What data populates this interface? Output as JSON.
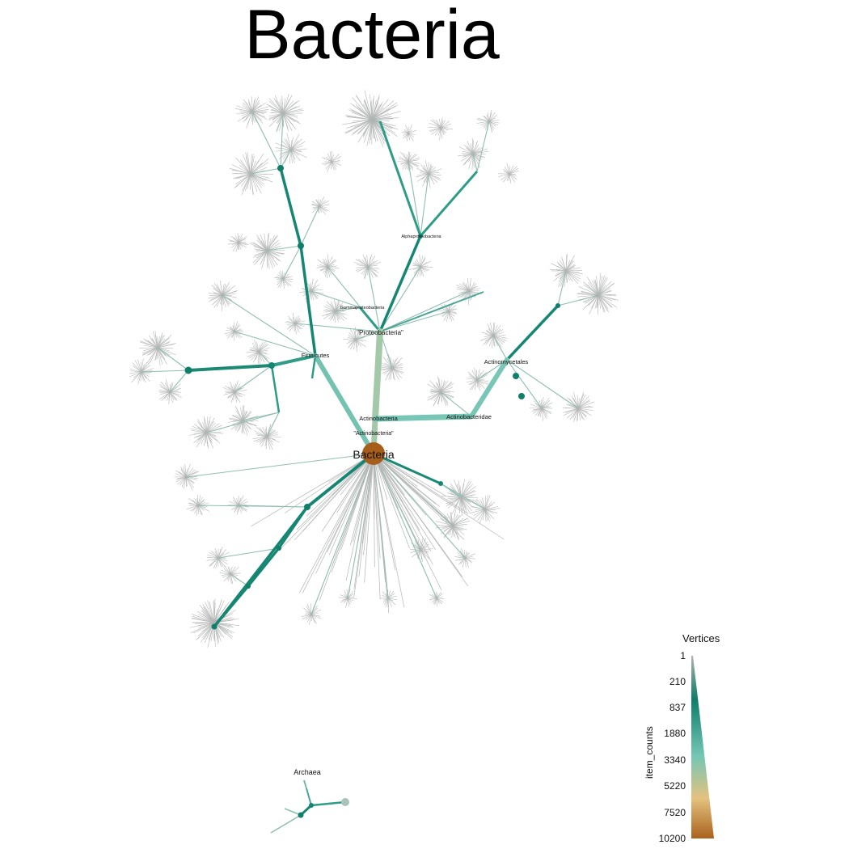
{
  "title": "Bacteria",
  "labels": {
    "root": "Bacteria",
    "proteobacteria": "\"Proteobacteria\"",
    "firmicutes": "Firmicutes",
    "actinobacteria": "Actinobacteria",
    "actinobacteria_quoted": "\"Actinobacteria\"",
    "actinobacteridae": "Actinobacteridae",
    "actinomycetales": "Actinomycetales",
    "alphaproteobacteria": "Alphaproteobacteria",
    "gammaproteobacteria": "Gammaproteobacteria",
    "archaea": "Archaea"
  },
  "legend": {
    "title": "Vertices",
    "axis_label": "item_counts",
    "ticks": [
      "1",
      "210",
      "837",
      "1880",
      "3340",
      "5220",
      "7520",
      "10200"
    ],
    "colors": [
      "#b0b3b1",
      "#0e7d69",
      "#74c7b4",
      "#e3c27e",
      "#a9621d"
    ]
  },
  "colors": {
    "root_node": "#a65e1a",
    "dark_teal": "#0f7f6c",
    "mid_teal": "#4aa695",
    "light_teal": "#78c6b6",
    "sage": "#a4c9a8",
    "grey_leaf": "#b3b6b4"
  }
}
